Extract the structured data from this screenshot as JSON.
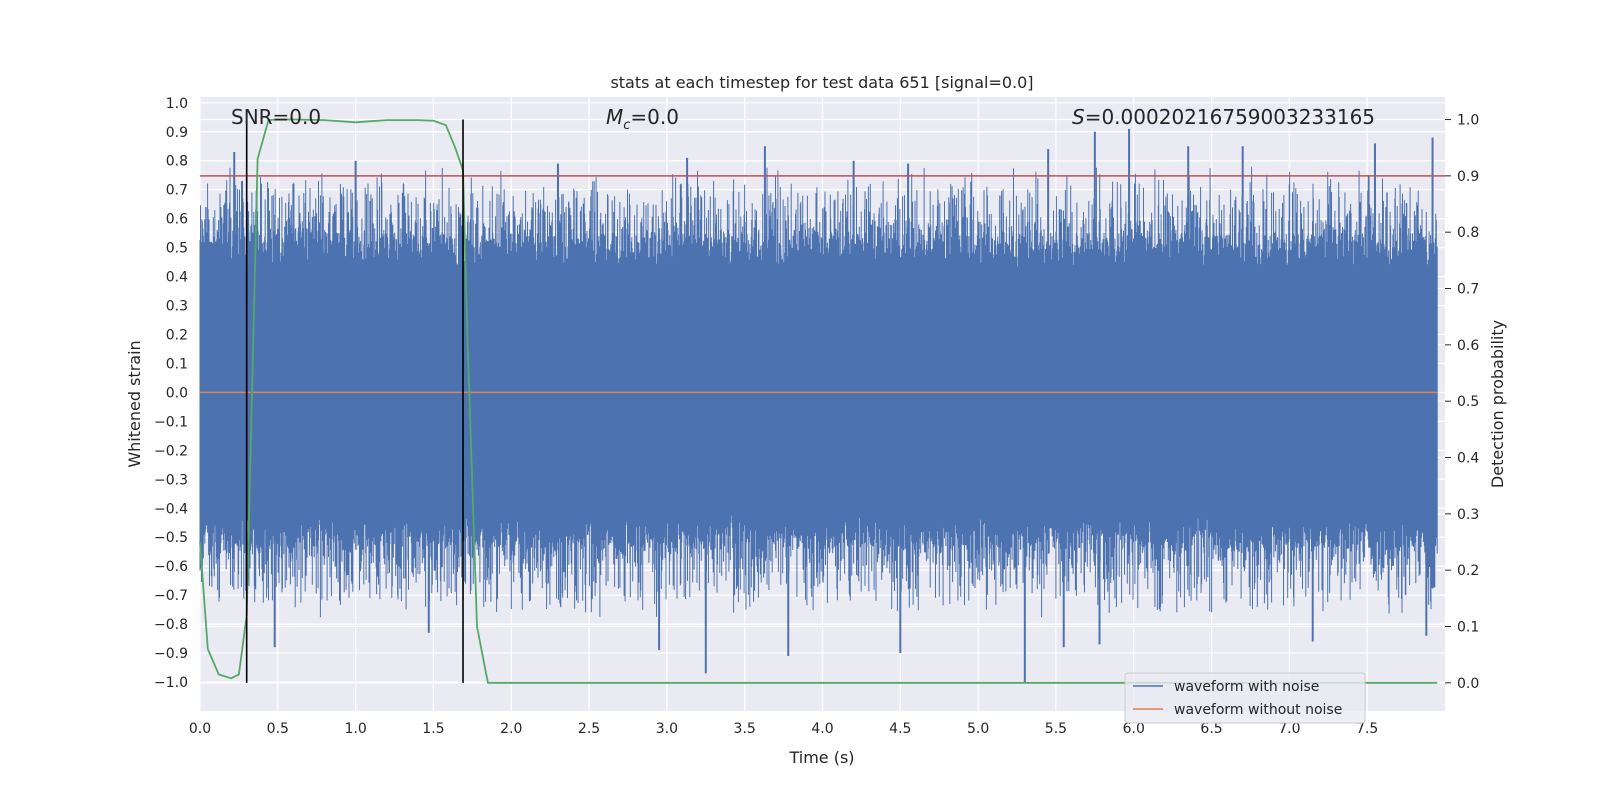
{
  "chart_data": {
    "type": "line",
    "title": "stats at each timestep for test data 651 [signal=0.0]",
    "xlabel": "Time (s)",
    "ylabel": "Whitened strain",
    "ylabel_right": "Detection probability",
    "xlim": [
      0.0,
      8.0
    ],
    "ylim": [
      -1.1,
      1.02
    ],
    "ylim_right": [
      -0.05,
      1.04
    ],
    "x_ticks": [
      0.0,
      0.5,
      1.0,
      1.5,
      2.0,
      2.5,
      3.0,
      3.5,
      4.0,
      4.5,
      5.0,
      5.5,
      6.0,
      6.5,
      7.0,
      7.5
    ],
    "x_tick_labels": [
      "0.0",
      "0.5",
      "1.0",
      "1.5",
      "2.0",
      "2.5",
      "3.0",
      "3.5",
      "4.0",
      "4.5",
      "5.0",
      "5.5",
      "6.0",
      "6.5",
      "7.0",
      "7.5"
    ],
    "y_ticks": [
      1.0,
      0.9,
      0.8,
      0.7,
      0.6,
      0.5,
      0.4,
      0.3,
      0.2,
      0.1,
      0.0,
      -0.1,
      -0.2,
      -0.3,
      -0.4,
      -0.5,
      -0.6,
      -0.7,
      -0.8,
      -0.9,
      -1.0
    ],
    "y_tick_labels": [
      "1.0",
      "0.9",
      "0.8",
      "0.7",
      "0.6",
      "0.5",
      "0.4",
      "0.3",
      "0.2",
      "0.1",
      "0.0",
      "−0.1",
      "−0.2",
      "−0.3",
      "−0.4",
      "−0.5",
      "−0.6",
      "−0.7",
      "−0.8",
      "−0.9",
      "−1.0"
    ],
    "y_ticks_right": [
      1.0,
      0.9,
      0.8,
      0.7,
      0.6,
      0.5,
      0.4,
      0.3,
      0.2,
      0.1,
      0.0
    ],
    "y_tick_labels_right": [
      "1.0",
      "0.9",
      "0.8",
      "0.7",
      "0.6",
      "0.5",
      "0.4",
      "0.3",
      "0.2",
      "0.1",
      "0.0"
    ],
    "annotations": {
      "snr": "SNR=0.0",
      "mc_symbol": "M",
      "mc_sub": "c",
      "mc_value": "=0.0",
      "s_symbol": "S",
      "s_value": "=0.0002021675900323316​5"
    },
    "threshold_right": 0.9,
    "vlines_x": [
      0.3,
      1.69
    ],
    "series": [
      {
        "name": "waveform with noise",
        "color": "#4c72b0",
        "kind": "noise",
        "peaks_pos": [
          [
            0.22,
            0.83
          ],
          [
            0.27,
            0.73
          ],
          [
            0.6,
            0.72
          ],
          [
            1.0,
            0.8
          ],
          [
            2.3,
            0.79
          ],
          [
            3.13,
            0.81
          ],
          [
            3.63,
            0.85
          ],
          [
            4.2,
            0.8
          ],
          [
            4.55,
            0.79
          ],
          [
            5.45,
            0.84
          ],
          [
            5.75,
            0.9
          ],
          [
            5.97,
            0.91
          ],
          [
            6.35,
            0.85
          ],
          [
            6.7,
            0.85
          ],
          [
            7.55,
            0.86
          ],
          [
            7.92,
            0.88
          ]
        ],
        "peaks_neg": [
          [
            0.48,
            -0.88
          ],
          [
            1.47,
            -0.83
          ],
          [
            2.95,
            -0.89
          ],
          [
            3.25,
            -0.97
          ],
          [
            3.78,
            -0.91
          ],
          [
            4.5,
            -0.9
          ],
          [
            5.3,
            -1.0
          ],
          [
            5.55,
            -0.88
          ],
          [
            5.78,
            -0.87
          ],
          [
            7.15,
            -0.86
          ],
          [
            7.88,
            -0.84
          ]
        ]
      },
      {
        "name": "waveform without noise",
        "color": "#dd8452",
        "kind": "flat",
        "value": 0.0
      },
      {
        "name": "detection probability",
        "color": "#55a868",
        "axis": "right",
        "x": [
          0.0,
          0.05,
          0.12,
          0.2,
          0.25,
          0.3,
          0.37,
          0.44,
          0.5,
          0.6,
          0.8,
          1.0,
          1.1,
          1.2,
          1.4,
          1.5,
          1.58,
          1.64,
          1.69,
          1.72,
          1.78,
          1.85,
          1.92,
          2.0,
          3.0,
          4.0,
          5.0,
          6.0,
          7.0,
          7.95
        ],
        "y": [
          0.25,
          0.06,
          0.015,
          0.008,
          0.015,
          0.12,
          0.93,
          0.999,
          1.0,
          1.0,
          0.999,
          0.995,
          0.997,
          0.999,
          0.999,
          0.998,
          0.99,
          0.95,
          0.91,
          0.6,
          0.1,
          0.0,
          0.0,
          0.0,
          0.0,
          0.0,
          0.0,
          0.0,
          0.0,
          0.0
        ]
      },
      {
        "name": "threshold",
        "color": "#c44e52",
        "axis": "right",
        "kind": "hline",
        "value": 0.9
      }
    ],
    "legend": {
      "location": "lower-right",
      "entries": [
        {
          "label": "waveform with noise",
          "color": "#4c72b0"
        },
        {
          "label": "waveform without noise",
          "color": "#dd8452"
        }
      ]
    }
  }
}
